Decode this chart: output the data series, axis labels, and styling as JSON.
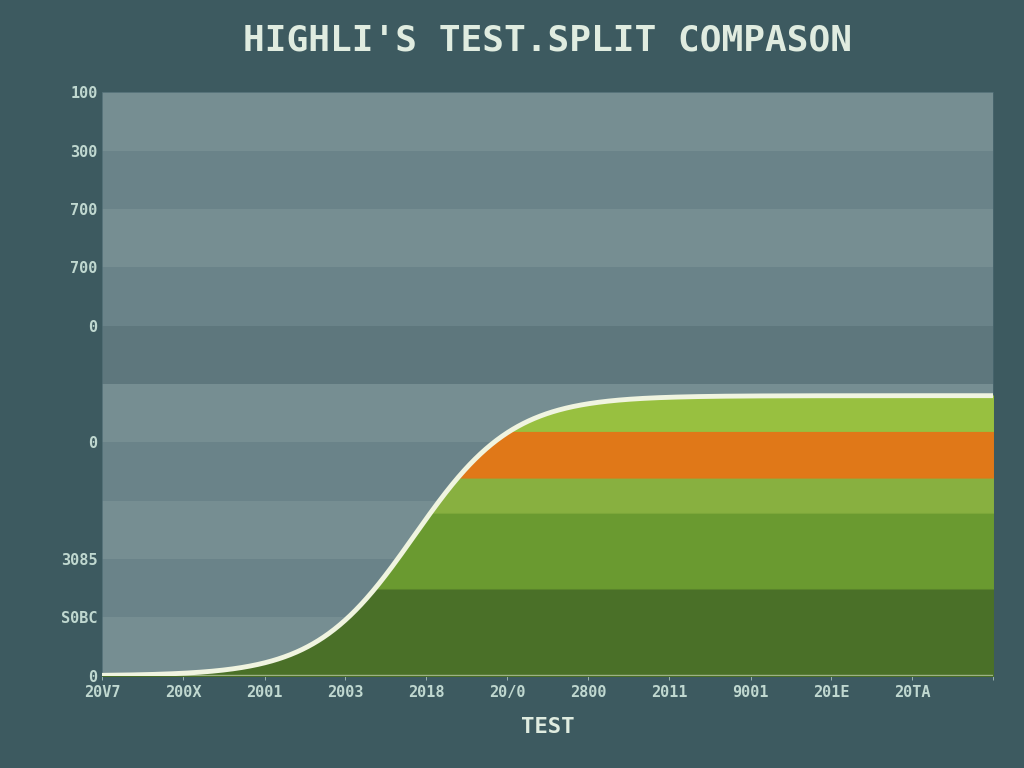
{
  "title": "HIGHLI'S TEST.SPLIT COMPASON",
  "xlabel": "TEST",
  "background_color": "#3d5a60",
  "xlim": [
    0,
    2000
  ],
  "ylim": [
    0,
    1000
  ],
  "sigmoid_k": 0.009,
  "sigmoid_x0": 700,
  "sigmoid_max": 480,
  "stripe_colors": [
    "#8aa0a4",
    "#7a9298",
    "#8aa0a4",
    "#7a9298",
    "#8aa0a4",
    "#6a8288",
    "#7a9298",
    "#8aa0a4",
    "#7a9298",
    "#8aa0a4",
    "#6a8288"
  ],
  "stripe_boundaries": [
    0,
    100,
    200,
    300,
    400,
    500,
    600,
    700,
    800,
    900,
    1000
  ],
  "fill_bands": [
    {
      "y_low": 0,
      "y_high": 150,
      "color": "#4a7028"
    },
    {
      "y_low": 150,
      "y_high": 280,
      "color": "#6a9a30"
    },
    {
      "y_low": 280,
      "y_high": 340,
      "color": "#88b040"
    },
    {
      "y_low": 340,
      "y_high": 420,
      "color": "#e07818"
    },
    {
      "y_low": 420,
      "y_high": 500,
      "color": "#98c040"
    }
  ],
  "curve_color": "#f0f4e0",
  "curve_linewidth": 3.5,
  "title_color": "#e0ece0",
  "tick_color": "#c0d8d0",
  "title_fontsize": 26,
  "label_fontsize": 16,
  "tick_fontsize": 11,
  "ytick_vals": [
    0,
    100,
    200,
    300,
    400,
    500,
    600,
    700,
    800,
    900,
    1000
  ],
  "ytick_labels": [
    "0",
    "S0BC",
    "3085",
    "",
    "0",
    "",
    "0",
    "700",
    "700",
    "300",
    "100"
  ],
  "xtick_vals": [
    0,
    182,
    364,
    545,
    727,
    909,
    1091,
    1273,
    1455,
    1636,
    1818,
    2000
  ],
  "xtick_labels": [
    "20V7",
    "200X",
    "2001",
    "2003",
    "2018",
    "20/0",
    "2800",
    "2011",
    "9001",
    "201E",
    "20TA",
    ""
  ]
}
